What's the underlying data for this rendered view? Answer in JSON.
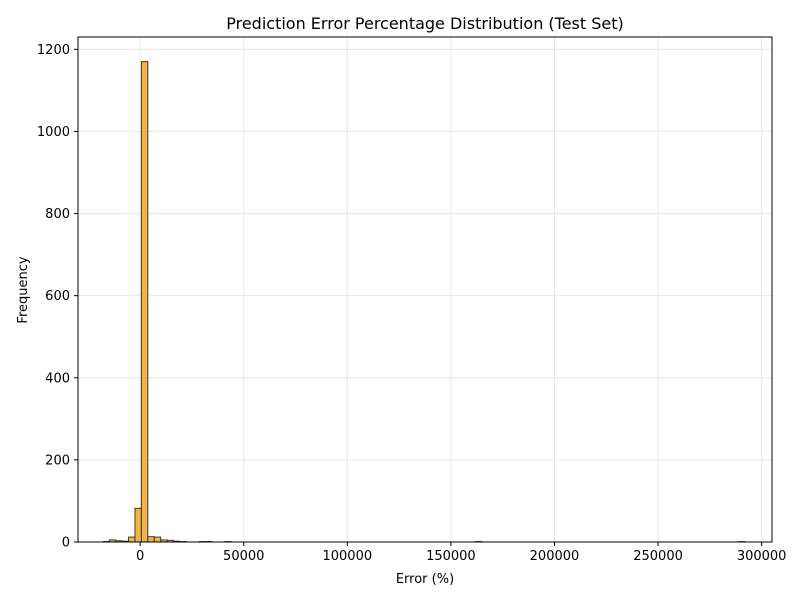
{
  "chart_data": {
    "type": "bar",
    "title": "Prediction Error Percentage Distribution (Test Set)",
    "xlabel": "Error (%)",
    "ylabel": "Frequency",
    "xlim": [
      -30000,
      305000
    ],
    "ylim": [
      0,
      1230
    ],
    "xticks": [
      0,
      50000,
      100000,
      150000,
      200000,
      250000,
      300000
    ],
    "yticks": [
      0,
      200,
      400,
      600,
      800,
      1000,
      1200
    ],
    "grid": true,
    "bin_width": 3100,
    "bars": [
      {
        "x": -18000,
        "value": 1
      },
      {
        "x": -14900,
        "value": 5
      },
      {
        "x": -11800,
        "value": 3
      },
      {
        "x": -8700,
        "value": 2
      },
      {
        "x": -5600,
        "value": 12
      },
      {
        "x": -2500,
        "value": 82
      },
      {
        "x": 600,
        "value": 1170
      },
      {
        "x": 3700,
        "value": 13
      },
      {
        "x": 6800,
        "value": 12
      },
      {
        "x": 9900,
        "value": 5
      },
      {
        "x": 13000,
        "value": 4
      },
      {
        "x": 16100,
        "value": 2
      },
      {
        "x": 19200,
        "value": 1
      },
      {
        "x": 28500,
        "value": 1
      },
      {
        "x": 31600,
        "value": 1
      },
      {
        "x": 40900,
        "value": 1
      },
      {
        "x": 161800,
        "value": 1
      },
      {
        "x": 288900,
        "value": 1
      }
    ],
    "colors": {
      "bar_fill": "#f5b342",
      "bar_edge": "#3a3a3a",
      "grid": "#e6e6e6"
    }
  }
}
